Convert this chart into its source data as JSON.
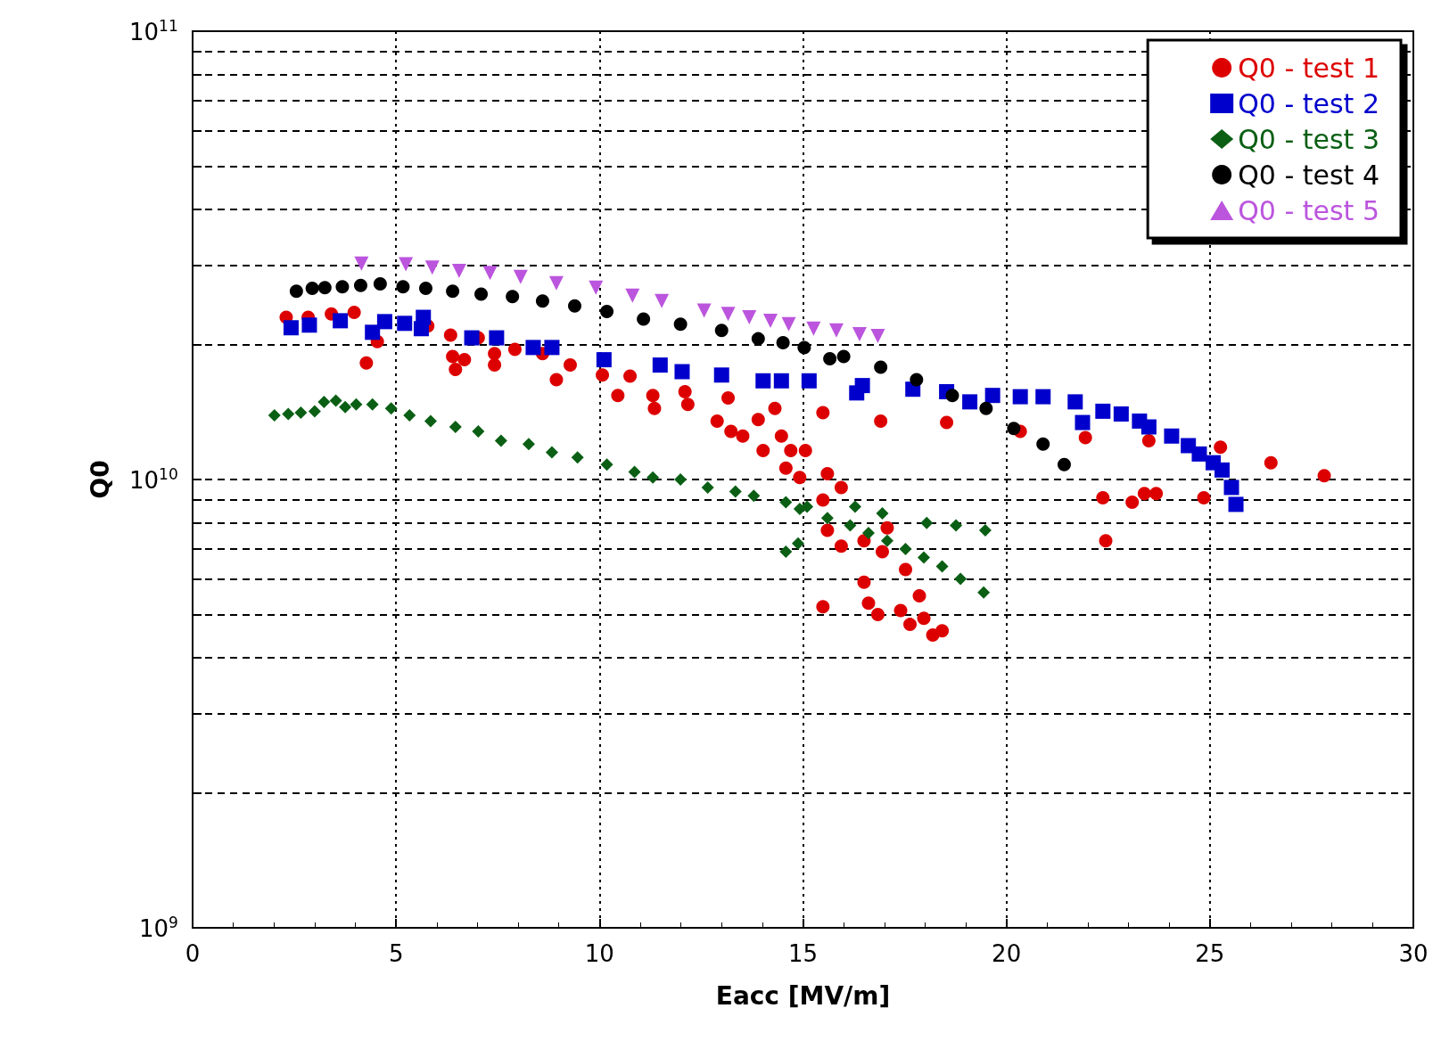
{
  "chart_data": {
    "type": "scatter",
    "xlabel": "Eacc [MV/m]",
    "ylabel": "Q0",
    "log": "y",
    "grid": true,
    "legend": "top right",
    "xlim": [
      0,
      30
    ],
    "xticks": [
      0,
      5,
      10,
      15,
      20,
      25,
      30
    ],
    "ylim": [
      1000000000.0,
      100000000000.0
    ],
    "yticks": [
      {
        "value": 1000000000.0,
        "label": "10$^{9}$"
      },
      {
        "value": 2000000000.0,
        "label": null
      },
      {
        "value": 3000000000.0,
        "label": null
      },
      {
        "value": 4000000000.0,
        "label": null
      },
      {
        "value": 5000000000.0,
        "label": null
      },
      {
        "value": 6000000000.0,
        "label": null
      },
      {
        "value": 7000000000.0,
        "label": null
      },
      {
        "value": 8000000000.0,
        "label": null
      },
      {
        "value": 9000000000.0,
        "label": null
      },
      {
        "value": 10000000000.0,
        "label": "10$^{10}$"
      },
      {
        "value": 20000000000.0,
        "label": null
      },
      {
        "value": 30000000000.0,
        "label": null
      },
      {
        "value": 40000000000.0,
        "label": null
      },
      {
        "value": 50000000000.0,
        "label": null
      },
      {
        "value": 60000000000.0,
        "label": null
      },
      {
        "value": 70000000000.0,
        "label": null
      },
      {
        "value": 80000000000.0,
        "label": null
      },
      {
        "value": 90000000000.0,
        "label": null
      },
      {
        "value": 100000000000.0,
        "label": "10$^{11}$"
      }
    ],
    "series": [
      {
        "name": "Q0 - test 1",
        "color": "#dd0000",
        "marker": "circle",
        "x": [
          2.3,
          2.84,
          3.41,
          3.97,
          4.27,
          4.54,
          5.21,
          5.78,
          6.34,
          6.39,
          6.68,
          6.46,
          7.02,
          7.42,
          7.42,
          7.92,
          8.6,
          8.94,
          9.28,
          10.07,
          10.45,
          10.75,
          11.31,
          11.35,
          12.1,
          12.17,
          12.89,
          13.16,
          13.23,
          13.52,
          13.9,
          14.02,
          14.31,
          14.47,
          14.58,
          14.7,
          15.06,
          14.92,
          15.49,
          15.6,
          15.94,
          15.49,
          15.6,
          15.49,
          15.94,
          16.5,
          16.5,
          16.61,
          16.84,
          16.95,
          17.07,
          16.91,
          17.4,
          17.52,
          17.63,
          17.86,
          17.97,
          18.19,
          18.42,
          18.53,
          20.34,
          21.94,
          22.37,
          22.44,
          23.09,
          23.39,
          23.68,
          23.5,
          24.85,
          25.26,
          26.5,
          27.81
        ],
        "values": [
          23000000000.0,
          23000000000.0,
          23400000000.0,
          23600000000.0,
          18200000000.0,
          20300000000.0,
          null,
          22000000000.0,
          21000000000.0,
          18800000000.0,
          18500000000.0,
          17600000000.0,
          20700000000.0,
          19100000000.0,
          18000000000.0,
          19500000000.0,
          19100000000.0,
          16700000000.0,
          18000000000.0,
          17100000000.0,
          15400000000.0,
          17000000000.0,
          15400000000.0,
          14400000000.0,
          15700000000.0,
          14700000000.0,
          13500000000.0,
          15200000000.0,
          12800000000.0,
          12500000000.0,
          13600000000.0,
          11600000000.0,
          14400000000.0,
          12500000000.0,
          10600000000.0,
          11600000000.0,
          11600000000.0,
          10100000000.0,
          14100000000.0,
          10300000000.0,
          9600000000.0,
          9000000000.0,
          7700000000.0,
          5200000000.0,
          7100000000.0,
          7300000000.0,
          5900000000.0,
          5300000000.0,
          5000000000.0,
          6900000000.0,
          7800000000.0,
          13500000000.0,
          5100000000.0,
          6300000000.0,
          4750000000.0,
          5500000000.0,
          4900000000.0,
          4500000000.0,
          4600000000.0,
          13400000000.0,
          12800000000.0,
          12400000000.0,
          9100000000.0,
          7300000000.0,
          8900000000.0,
          9300000000.0,
          9300000000.0,
          12200000000.0,
          9100000000.0,
          11800000000.0,
          10900000000.0,
          10200000000.0
        ]
      },
      {
        "name": "Q0 - test 2",
        "color": "#0000cc",
        "marker": "square",
        "x": [
          2.42,
          2.87,
          3.63,
          4.42,
          4.72,
          5.21,
          5.62,
          5.67,
          6.86,
          7.47,
          8.37,
          8.83,
          10.11,
          11.49,
          12.03,
          13.0,
          14.02,
          14.47,
          15.15,
          16.32,
          16.46,
          17.7,
          18.53,
          19.1,
          19.66,
          20.34,
          20.9,
          21.69,
          21.87,
          22.37,
          22.82,
          23.27,
          23.5,
          24.06,
          24.47,
          24.74,
          25.08,
          25.3,
          25.53,
          25.64
        ],
        "values": [
          21800000000.0,
          22100000000.0,
          22600000000.0,
          21300000000.0,
          22500000000.0,
          22300000000.0,
          21700000000.0,
          23000000000.0,
          20700000000.0,
          20700000000.0,
          19700000000.0,
          19700000000.0,
          18500000000.0,
          18000000000.0,
          17400000000.0,
          17100000000.0,
          16600000000.0,
          16600000000.0,
          16600000000.0,
          15600000000.0,
          16200000000.0,
          15900000000.0,
          15700000000.0,
          14900000000.0,
          15400000000.0,
          15300000000.0,
          15300000000.0,
          14900000000.0,
          13400000000.0,
          14200000000.0,
          14000000000.0,
          13500000000.0,
          13100000000.0,
          12500000000.0,
          11900000000.0,
          11400000000.0,
          10900000000.0,
          10500000000.0,
          9600000000.0,
          8800000000.0
        ]
      },
      {
        "name": "Q0 - test 3",
        "color": "#0a5f14",
        "marker": "diamond",
        "x": [
          2.01,
          2.35,
          2.66,
          3.0,
          3.23,
          3.52,
          3.75,
          4.02,
          4.42,
          4.88,
          5.33,
          5.85,
          6.46,
          7.02,
          7.58,
          8.26,
          8.83,
          9.46,
          10.18,
          10.86,
          11.31,
          11.99,
          12.66,
          13.34,
          13.79,
          14.58,
          15.1,
          14.92,
          15.6,
          16.16,
          16.61,
          17.07,
          17.52,
          17.97,
          18.42,
          18.87,
          19.44,
          16.28,
          16.95,
          18.04,
          18.76,
          19.48,
          14.58,
          14.88
        ],
        "values": [
          13900000000.0,
          14000000000.0,
          14100000000.0,
          14200000000.0,
          14900000000.0,
          15000000000.0,
          14500000000.0,
          14700000000.0,
          14700000000.0,
          14400000000.0,
          13900000000.0,
          13500000000.0,
          13100000000.0,
          12800000000.0,
          12200000000.0,
          12000000000.0,
          11500000000.0,
          11200000000.0,
          10800000000.0,
          10400000000.0,
          10100000000.0,
          10000000000.0,
          9600000000.0,
          9400000000.0,
          9200000000.0,
          8900000000.0,
          8700000000.0,
          8600000000.0,
          8200000000.0,
          7900000000.0,
          7600000000.0,
          7300000000.0,
          7000000000.0,
          6700000000.0,
          6400000000.0,
          6000000000.0,
          5600000000.0,
          8700000000.0,
          8400000000.0,
          8000000000.0,
          7900000000.0,
          7700000000.0,
          6900000000.0,
          7200000000.0
        ]
      },
      {
        "name": "Q0 - test 4",
        "color": "#000000",
        "marker": "circle",
        "x": [
          2.55,
          2.94,
          3.25,
          3.68,
          4.13,
          4.61,
          5.17,
          5.73,
          6.39,
          7.09,
          7.86,
          8.6,
          9.39,
          10.18,
          11.08,
          11.99,
          13.0,
          13.9,
          14.51,
          15.03,
          15.66,
          16.0,
          16.91,
          17.79,
          18.67,
          19.5,
          20.18,
          20.9,
          21.42
        ],
        "values": [
          26300000000.0,
          26700000000.0,
          26800000000.0,
          26900000000.0,
          27100000000.0,
          27300000000.0,
          26900000000.0,
          26700000000.0,
          26300000000.0,
          25900000000.0,
          25600000000.0,
          25000000000.0,
          24400000000.0,
          23700000000.0,
          22800000000.0,
          22200000000.0,
          21500000000.0,
          20600000000.0,
          20200000000.0,
          19700000000.0,
          18600000000.0,
          18800000000.0,
          17800000000.0,
          16700000000.0,
          15400000000.0,
          14400000000.0,
          13000000000.0,
          12000000000.0,
          10800000000.0
        ]
      },
      {
        "name": "Q0 - test 5",
        "color": "#bb55dd",
        "marker": "triangle",
        "x": [
          4.15,
          5.24,
          5.89,
          6.55,
          7.31,
          8.06,
          8.94,
          9.91,
          10.81,
          11.53,
          12.57,
          13.16,
          13.68,
          14.2,
          14.65,
          15.26,
          15.82,
          16.39,
          16.84
        ],
        "values": [
          30300000000.0,
          30200000000.0,
          29700000000.0,
          29200000000.0,
          28900000000.0,
          28300000000.0,
          27400000000.0,
          26800000000.0,
          25700000000.0,
          25000000000.0,
          23800000000.0,
          23400000000.0,
          23000000000.0,
          22600000000.0,
          22200000000.0,
          21700000000.0,
          21500000000.0,
          21100000000.0,
          20900000000.0
        ]
      }
    ]
  }
}
